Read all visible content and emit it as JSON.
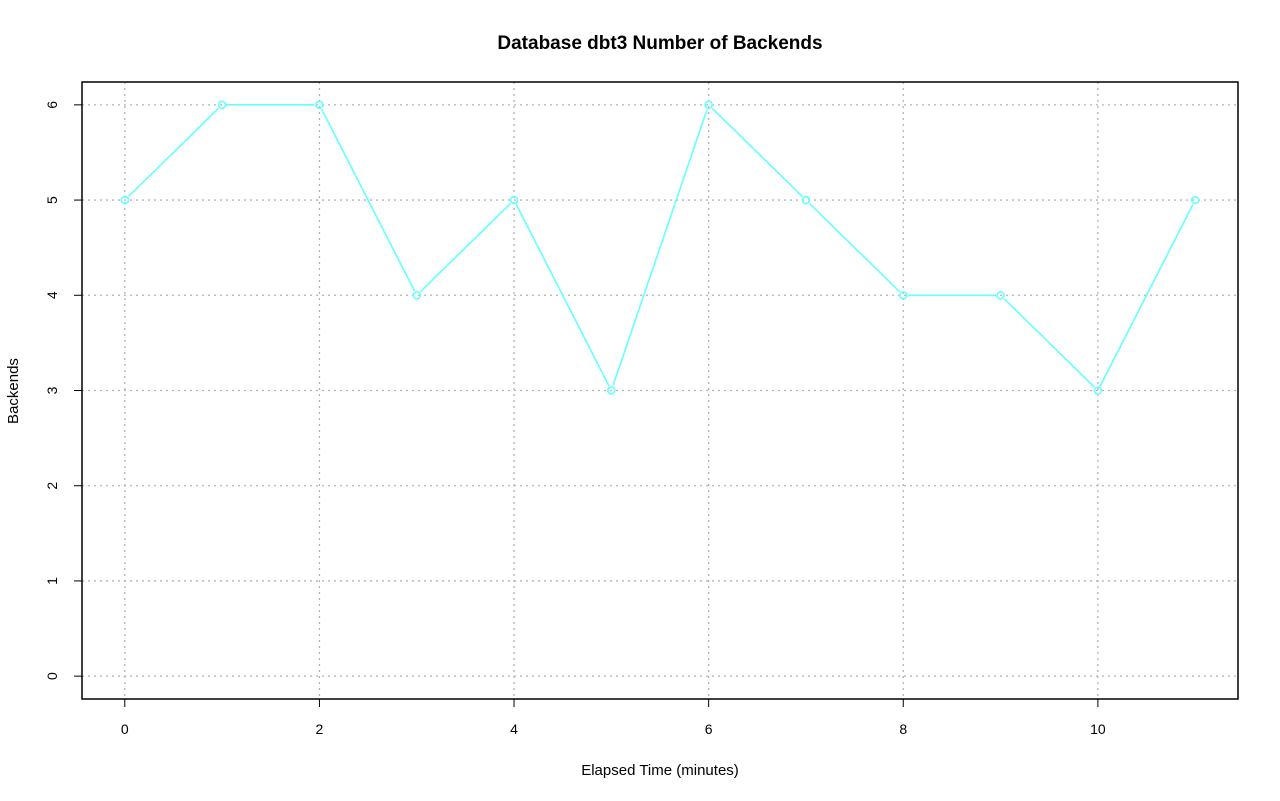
{
  "chart_data": {
    "type": "line",
    "title": "Database dbt3 Number of Backends",
    "xlabel": "Elapsed Time (minutes)",
    "ylabel": "Backends",
    "x": [
      0,
      1,
      2,
      3,
      4,
      5,
      6,
      7,
      8,
      9,
      10,
      11
    ],
    "series": [
      {
        "values": [
          5,
          6,
          6,
          4,
          5,
          3,
          6,
          5,
          4,
          4,
          3,
          5
        ],
        "color": "#66ffff"
      }
    ],
    "xlim": [
      -0.44,
      11.44
    ],
    "ylim": [
      -0.24,
      6.24
    ],
    "xticks": [
      0,
      2,
      4,
      6,
      8,
      10
    ],
    "yticks": [
      0,
      1,
      2,
      3,
      4,
      5,
      6
    ],
    "xtick_labels": [
      "0",
      "2",
      "4",
      "6",
      "8",
      "10"
    ],
    "ytick_labels": [
      "0",
      "1",
      "2",
      "3",
      "4",
      "5",
      "6"
    ],
    "grid": true,
    "marker": "open-circle",
    "colors": {
      "line": "#66ffff",
      "grid": "#b3b3b3",
      "axis": "#000000"
    }
  }
}
